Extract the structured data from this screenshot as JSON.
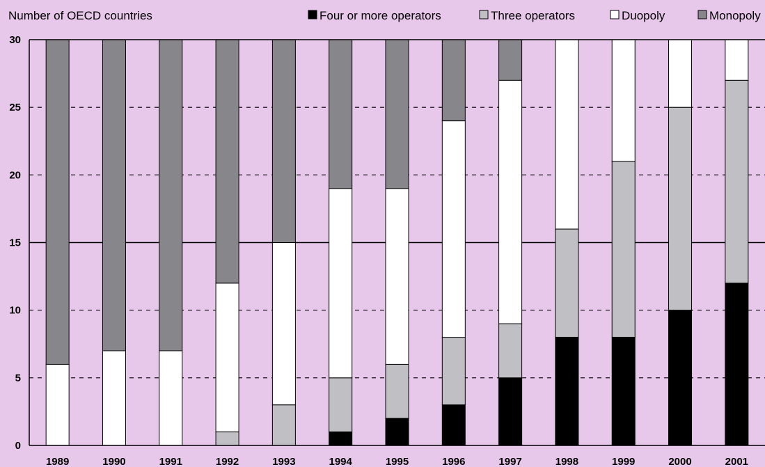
{
  "chart_data": {
    "type": "bar",
    "stacked": true,
    "ylabel": "Number of OECD countries",
    "ylim": [
      0,
      30
    ],
    "yticks": [
      0,
      5,
      10,
      15,
      20,
      25,
      30
    ],
    "grid": true,
    "legend_position": "top-right",
    "categories": [
      "1989",
      "1990",
      "1991",
      "1992",
      "1993",
      "1994",
      "1995",
      "1996",
      "1997",
      "1998",
      "1999",
      "2000",
      "2001"
    ],
    "series": [
      {
        "name": "Four or more operators",
        "color": "#000000",
        "values": [
          0,
          0,
          0,
          0,
          0,
          1,
          2,
          3,
          5,
          8,
          8,
          10,
          12
        ]
      },
      {
        "name": "Three operators",
        "color": "#c0c0c4",
        "values": [
          0,
          0,
          0,
          1,
          3,
          4,
          4,
          5,
          4,
          8,
          13,
          15,
          15
        ]
      },
      {
        "name": "Duopoly",
        "color": "#ffffff",
        "values": [
          6,
          7,
          7,
          11,
          12,
          14,
          13,
          16,
          18,
          14,
          9,
          5,
          3
        ]
      },
      {
        "name": "Monopoly",
        "color": "#87878b",
        "values": [
          24,
          23,
          23,
          18,
          15,
          11,
          11,
          6,
          3,
          0,
          0,
          0,
          0
        ]
      }
    ]
  }
}
